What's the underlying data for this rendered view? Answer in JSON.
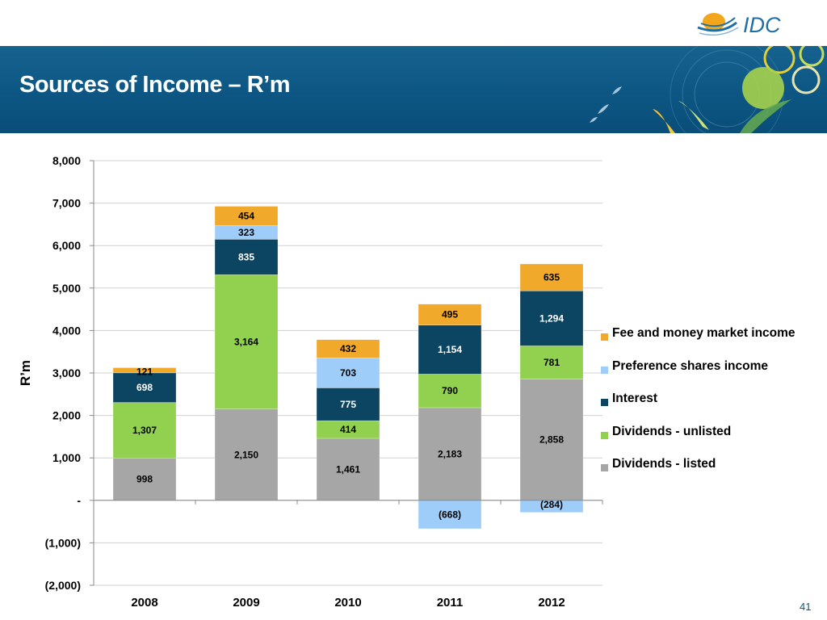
{
  "header": {
    "logo_text": "IDC",
    "title": "Sources of Income – R’m"
  },
  "colors": {
    "banner": "#0d5683",
    "logo_text": "#1d6fa6",
    "logo_swoosh": "#f2a71b"
  },
  "chart_data": {
    "type": "bar",
    "stacked": true,
    "title": "",
    "xlabel": "",
    "ylabel": "R’m",
    "ylim": [
      -2000,
      8000
    ],
    "ytick_values": [
      -2000,
      -1000,
      0,
      1000,
      2000,
      3000,
      4000,
      5000,
      6000,
      7000,
      8000
    ],
    "ytick_labels": [
      "(2,000)",
      "(1,000)",
      "-",
      "1,000",
      "2,000",
      "3,000",
      "4,000",
      "5,000",
      "6,000",
      "7,000",
      "8,000"
    ],
    "grid": "horizontal",
    "legend_position": "right",
    "categories": [
      "2008",
      "2009",
      "2010",
      "2011",
      "2012"
    ],
    "series": [
      {
        "name": "Dividends - listed",
        "color": "#a6a6a6",
        "values": [
          998,
          2150,
          1461,
          2183,
          2858
        ],
        "labels": [
          "998",
          "2,150",
          "1,461",
          "2,183",
          "2,858"
        ]
      },
      {
        "name": "Dividends - unlisted",
        "color": "#92d050",
        "values": [
          1307,
          3164,
          414,
          790,
          781
        ],
        "labels": [
          "1,307",
          "3,164",
          "414",
          "790",
          "781"
        ]
      },
      {
        "name": "Interest",
        "color": "#0b4561",
        "values": [
          698,
          835,
          775,
          1154,
          1294
        ],
        "labels": [
          "698",
          "835",
          "775",
          "1,154",
          "1,294"
        ]
      },
      {
        "name": "Preference shares income",
        "color": "#9fcdf9",
        "values": [
          0,
          323,
          703,
          -668,
          -284
        ],
        "labels": [
          "",
          "323",
          "703",
          "(668)",
          "(284)"
        ]
      },
      {
        "name": "Fee and money market income",
        "color": "#f0a92a",
        "values": [
          121,
          454,
          432,
          495,
          635
        ],
        "labels": [
          "121",
          "454",
          "432",
          "495",
          "635"
        ]
      }
    ],
    "legend_order": [
      "Fee and money market income",
      "Preference shares income",
      "Interest",
      "Dividends - unlisted",
      "Dividends - listed"
    ]
  },
  "footer": {
    "page_number": "41"
  }
}
